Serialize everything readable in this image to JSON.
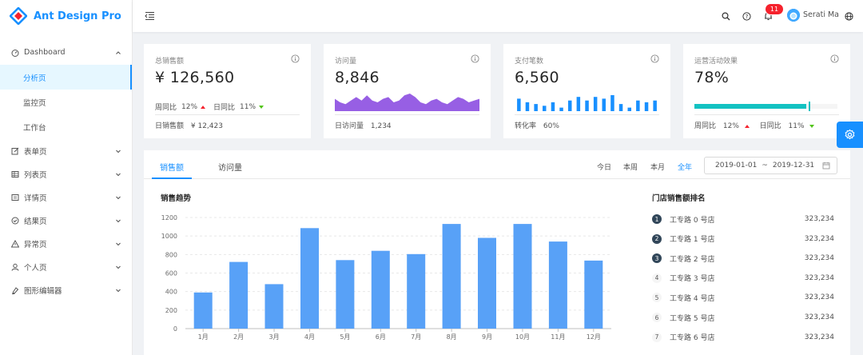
{
  "app": {
    "title": "Ant Design Pro"
  },
  "sidebar": {
    "items": [
      {
        "label": "Dashboard",
        "icon": "dashboard-icon",
        "expanded": true,
        "children": [
          {
            "label": "分析页",
            "active": true
          },
          {
            "label": "监控页"
          },
          {
            "label": "工作台"
          }
        ]
      },
      {
        "label": "表单页",
        "icon": "form-icon"
      },
      {
        "label": "列表页",
        "icon": "table-icon"
      },
      {
        "label": "详情页",
        "icon": "profile-icon"
      },
      {
        "label": "结果页",
        "icon": "check-circle-icon"
      },
      {
        "label": "异常页",
        "icon": "warning-icon"
      },
      {
        "label": "个人页",
        "icon": "user-icon"
      },
      {
        "label": "图形编辑器",
        "icon": "highlight-icon"
      }
    ]
  },
  "header": {
    "notification_count": "11",
    "username": "Serati Ma",
    "icons": [
      "menu-fold-icon",
      "search-icon",
      "question-icon",
      "bell-icon",
      "globe-icon"
    ]
  },
  "kpis": {
    "sales": {
      "title": "总销售额",
      "value": "¥ 126,560",
      "weekly_label": "周同比",
      "weekly_value": "12%",
      "daily_label": "日同比",
      "daily_value": "11%",
      "footer_label": "日销售额",
      "footer_value": "¥ 12,423"
    },
    "visits": {
      "title": "访问量",
      "value": "8,846",
      "footer_label": "日访问量",
      "footer_value": "1,234"
    },
    "payments": {
      "title": "支付笔数",
      "value": "6,560",
      "footer_label": "转化率",
      "footer_value": "60%"
    },
    "operations": {
      "title": "运营活动效果",
      "value": "78%",
      "progress": 0.78,
      "target": 0.8,
      "weekly_label": "周同比",
      "weekly_value": "12%",
      "daily_label": "日同比",
      "daily_value": "11%"
    }
  },
  "colors": {
    "accent": "#1890ff",
    "up": "#f5222d",
    "down": "#52c41a",
    "area": "#975fe4",
    "progress": "#13c2c2",
    "bar": "#58a1f7"
  },
  "sales_panel": {
    "tabs": [
      "销售额",
      "访问量"
    ],
    "range_links": [
      "今日",
      "本周",
      "本月",
      "全年"
    ],
    "date_start": "2019-01-01",
    "date_sep": "~",
    "date_end": "2019-12-31",
    "chart_title": "销售趋势",
    "rank_title": "门店销售额排名",
    "ranking": [
      {
        "rank": "1",
        "name": "工专路 0 号店",
        "value": "323,234"
      },
      {
        "rank": "2",
        "name": "工专路 1 号店",
        "value": "323,234"
      },
      {
        "rank": "3",
        "name": "工专路 2 号店",
        "value": "323,234"
      },
      {
        "rank": "4",
        "name": "工专路 3 号店",
        "value": "323,234"
      },
      {
        "rank": "5",
        "name": "工专路 4 号店",
        "value": "323,234"
      },
      {
        "rank": "6",
        "name": "工专路 5 号店",
        "value": "323,234"
      },
      {
        "rank": "7",
        "name": "工专路 6 号店",
        "value": "323,234"
      }
    ]
  },
  "chart_data": [
    {
      "type": "bar",
      "title": "销售趋势",
      "categories": [
        "1月",
        "2月",
        "3月",
        "4月",
        "5月",
        "6月",
        "7月",
        "8月",
        "9月",
        "10月",
        "11月",
        "12月"
      ],
      "values": [
        390,
        720,
        480,
        1085,
        740,
        840,
        805,
        1130,
        980,
        1130,
        940,
        735
      ],
      "ylim": [
        0,
        1200
      ],
      "yticks": [
        0,
        200,
        400,
        600,
        800,
        1000,
        1200
      ],
      "grid": true
    },
    {
      "type": "area",
      "values": [
        7,
        5,
        4,
        6,
        8,
        6,
        9,
        6,
        5,
        7,
        8,
        5,
        6,
        9,
        10,
        8,
        5,
        4,
        6,
        7,
        5,
        4,
        6,
        8,
        7,
        5,
        6,
        7
      ]
    },
    {
      "type": "bar",
      "values": [
        7,
        5,
        4,
        3,
        5,
        2,
        6,
        8,
        6,
        8,
        7,
        9,
        4,
        2,
        6,
        5,
        6
      ]
    }
  ]
}
